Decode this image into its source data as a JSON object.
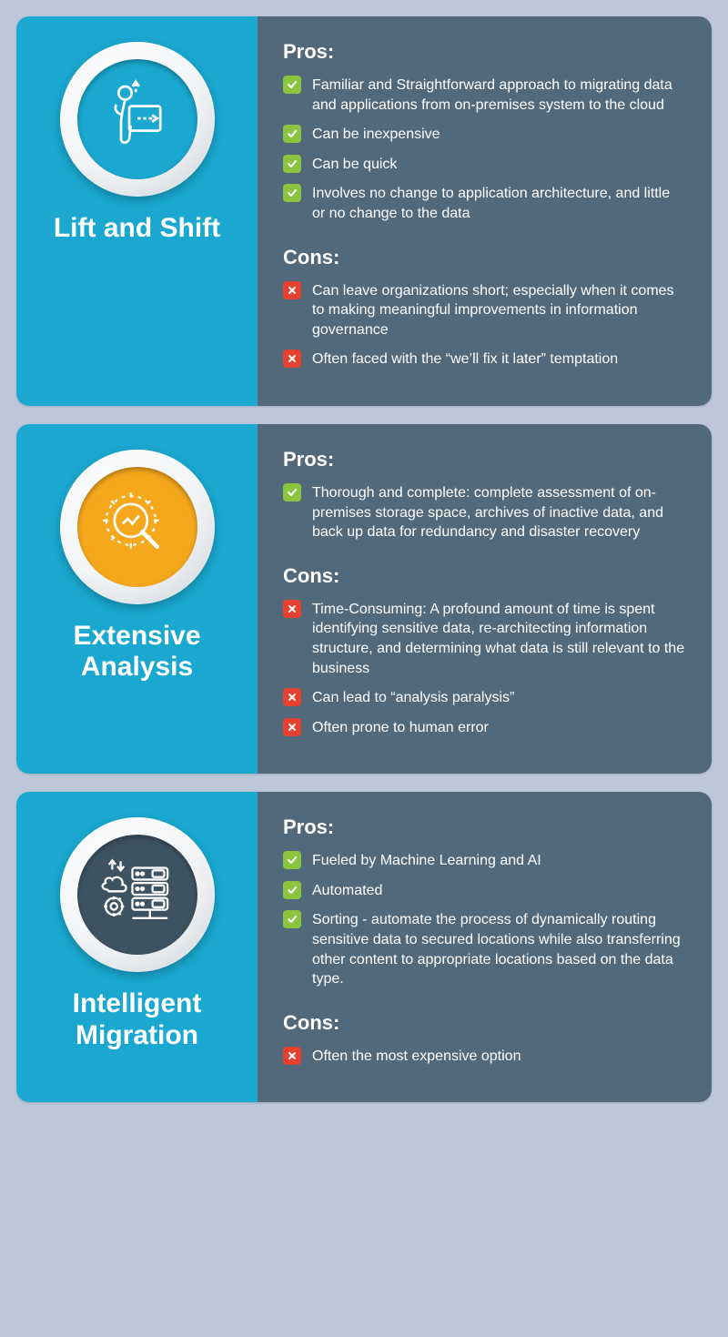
{
  "colors": {
    "page_bg": "#bcc7da",
    "left_bg": "#1aa8d0",
    "right_bg": "#52697b",
    "pro_badge": "#8bc53f",
    "con_badge": "#e6412e",
    "text": "#ffffff"
  },
  "pros_label": "Pros:",
  "cons_label": "Cons:",
  "cards": [
    {
      "title": "Lift and Shift",
      "icon": "lift",
      "icon_disc_color": "#1aa8d0",
      "pros": [
        "Familiar and Straightforward approach to migrating data and applications from on-premises system to the cloud",
        "Can be inexpensive",
        "Can be quick",
        "Involves no change to application architecture, and little or no change to the data"
      ],
      "cons": [
        "Can leave organizations short; especially when it comes to making meaningful improvements in information governance",
        "Often faced with the “we’ll fix it later” temptation"
      ]
    },
    {
      "title": "Extensive Analysis",
      "icon": "analysis",
      "icon_disc_color": "#f6a81c",
      "pros": [
        "Thorough and complete: complete assessment of on-premises storage space, archives of inactive data, and back up data for redundancy and disaster recovery"
      ],
      "cons": [
        "Time-Consuming: A profound amount of time is spent identifying sensitive data, re-architecting information structure, and determining what data is still relevant to the business",
        "Can lead to “analysis paralysis”",
        "Often prone to human error"
      ]
    },
    {
      "title": "Intelligent Migration",
      "icon": "intelligent",
      "icon_disc_color": "#3e5362",
      "pros": [
        "Fueled by Machine Learning and AI",
        "Automated",
        "Sorting - automate the process of dynamically routing sensitive data to secured locations while also transferring other content to appropriate locations based on the data type."
      ],
      "cons": [
        "Often the most expensive option"
      ]
    }
  ]
}
